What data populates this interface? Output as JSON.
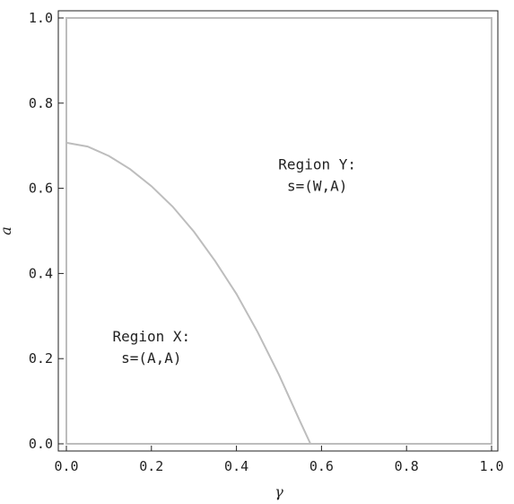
{
  "chart_data": {
    "type": "line",
    "xlabel": "γ",
    "ylabel": "a",
    "xlim": [
      0,
      1
    ],
    "ylim": [
      0,
      1
    ],
    "x_ticks": [
      "0.0",
      "0.2",
      "0.4",
      "0.6",
      "0.8",
      "1.0"
    ],
    "y_ticks": [
      "0.0",
      "0.2",
      "0.4",
      "0.6",
      "0.8",
      "1.0"
    ],
    "grid": false,
    "series": [
      {
        "color": "#bdbdbd",
        "x": [
          0.0,
          0.05,
          0.1,
          0.15,
          0.2,
          0.25,
          0.3,
          0.35,
          0.4,
          0.45,
          0.5,
          0.55,
          0.574
        ],
        "y": [
          0.707,
          0.698,
          0.676,
          0.645,
          0.605,
          0.557,
          0.498,
          0.429,
          0.352,
          0.262,
          0.162,
          0.052,
          0.0
        ]
      }
    ],
    "annotations": [
      {
        "line1": "Region X:",
        "line2": "s=(A,A)",
        "x": 0.2,
        "y": 0.24
      },
      {
        "line1": "Region Y:",
        "line2": "s=(W,A)",
        "x": 0.59,
        "y": 0.645
      }
    ]
  }
}
